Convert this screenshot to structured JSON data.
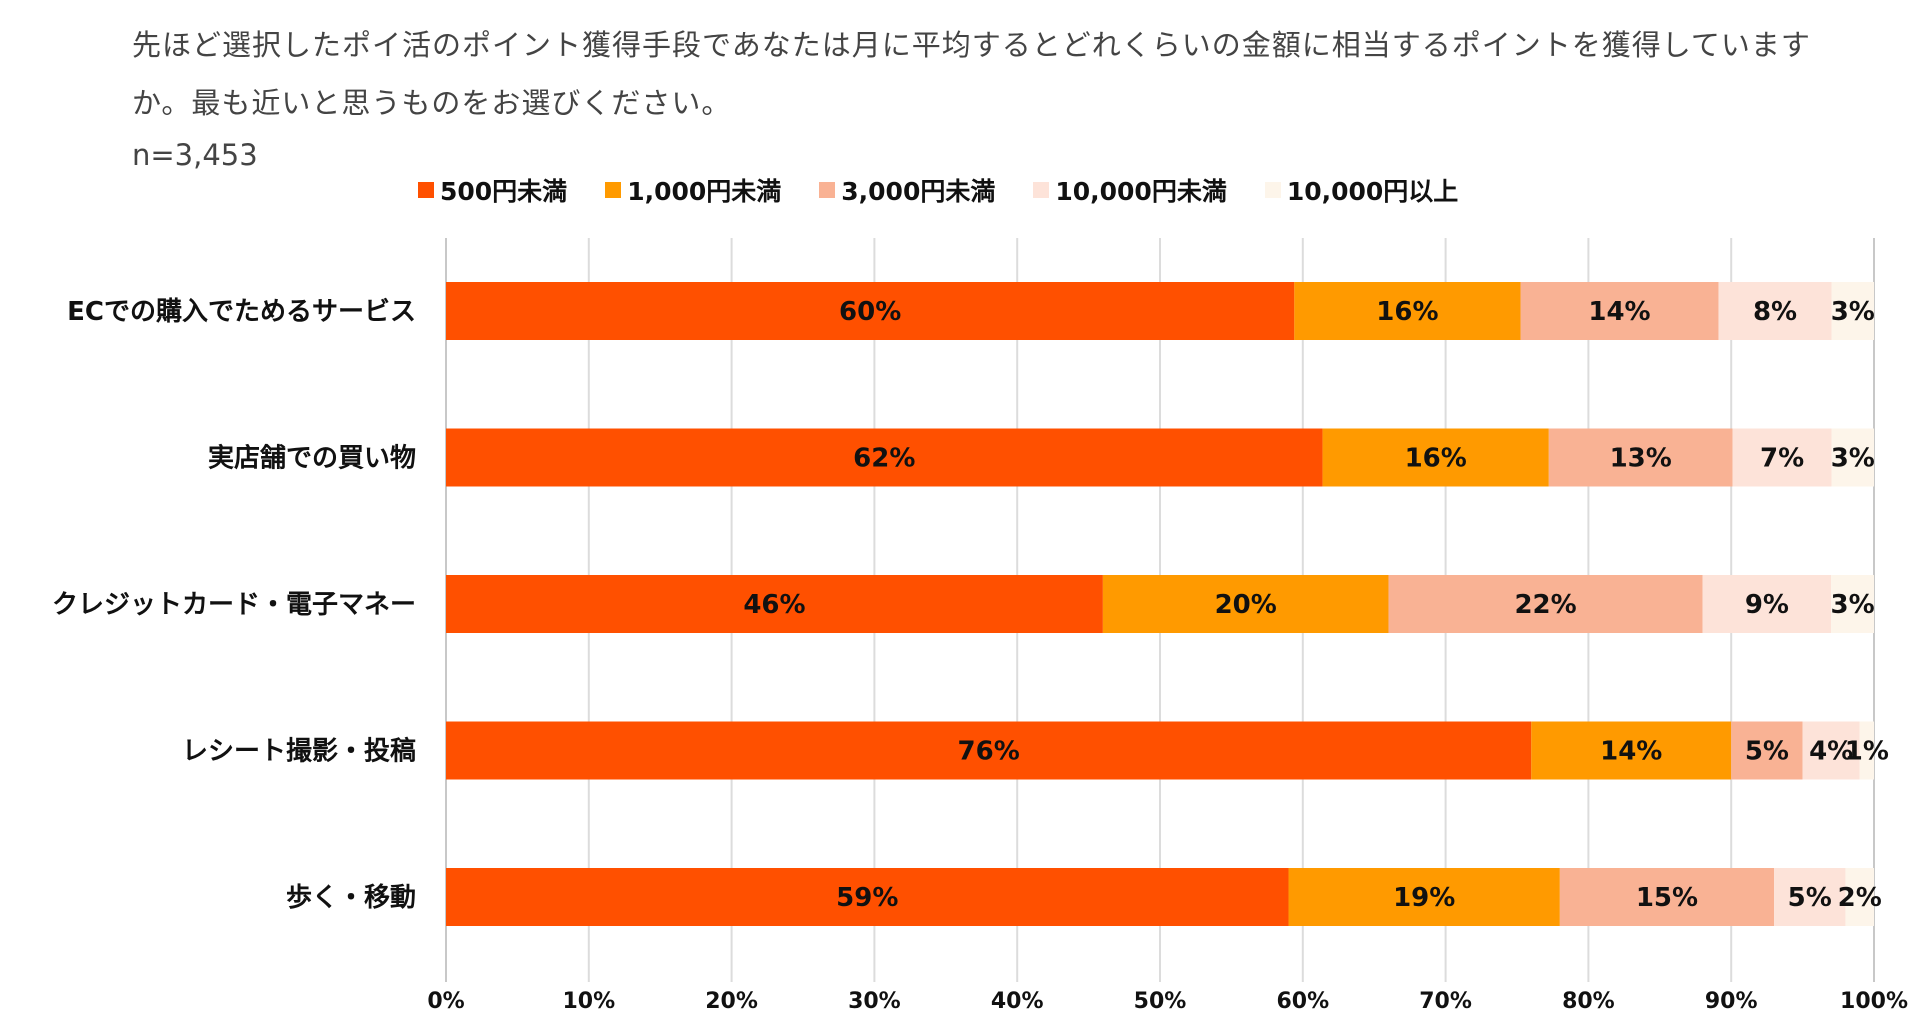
{
  "header": {
    "question": "先ほど選択したポイ活のポイント獲得手段であなたは月に平均するとどれくらいの金額に相当するポイントを獲得していますか。最も近いと思うものをお選びください。",
    "sample_size": "n=3,453"
  },
  "chart_data": {
    "type": "bar",
    "orientation": "horizontal",
    "stacked": true,
    "categories": [
      "ECでの購入でためるサービス",
      "実店舗での買い物",
      "クレジットカード・電子マネー",
      "レシート撮影・投稿",
      "歩く・移動"
    ],
    "series": [
      {
        "name": "500円未満",
        "color": "#FF5000",
        "values": [
          60,
          62,
          46,
          76,
          59
        ]
      },
      {
        "name": "1,000円未満",
        "color": "#FF9A00",
        "values": [
          16,
          16,
          20,
          14,
          19
        ]
      },
      {
        "name": "3,000円未満",
        "color": "#F9B294",
        "values": [
          14,
          13,
          22,
          5,
          15
        ]
      },
      {
        "name": "10,000円未満",
        "color": "#FDE3D9",
        "values": [
          8,
          7,
          9,
          4,
          5
        ]
      },
      {
        "name": "10,000円以上",
        "color": "#FDF5EA",
        "values": [
          3,
          3,
          3,
          1,
          2
        ]
      }
    ],
    "xlim": [
      0,
      100
    ],
    "x_ticks": [
      "0%",
      "10%",
      "20%",
      "30%",
      "40%",
      "50%",
      "60%",
      "70%",
      "80%",
      "90%",
      "100%"
    ],
    "grid": true,
    "legend_position": "top",
    "value_suffix": "%"
  }
}
